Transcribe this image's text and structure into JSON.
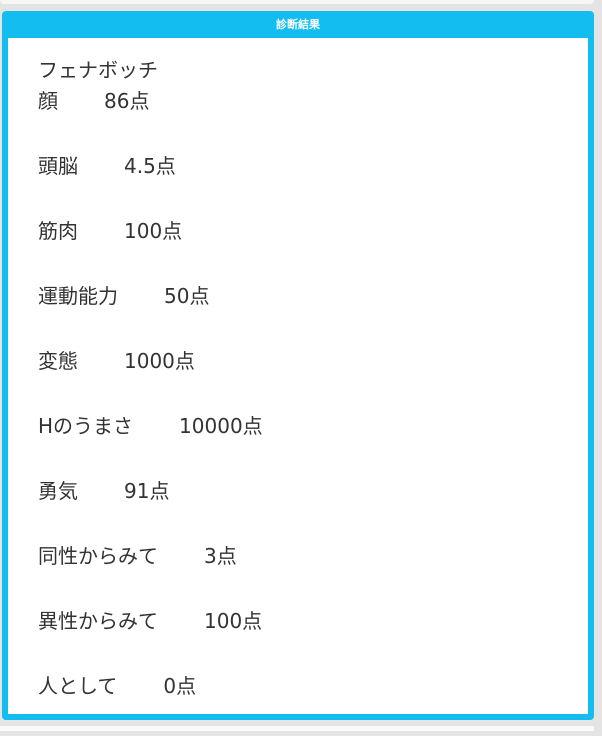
{
  "panel": {
    "title": "診断結果",
    "accent_color": "#14bdf0"
  },
  "result": {
    "name": "フェナボッチ",
    "items": [
      {
        "label": "顔",
        "value": "86点"
      },
      {
        "label": "頭脳",
        "value": "4.5点"
      },
      {
        "label": "筋肉",
        "value": "100点"
      },
      {
        "label": "運動能力",
        "value": "50点"
      },
      {
        "label": "変態",
        "value": "1000点"
      },
      {
        "label": "Hのうまさ",
        "value": "10000点"
      },
      {
        "label": "勇気",
        "value": "91点"
      },
      {
        "label": "同性からみて",
        "value": "3点"
      },
      {
        "label": "異性からみて",
        "value": "100点"
      },
      {
        "label": "人として",
        "value": "0点"
      }
    ]
  }
}
